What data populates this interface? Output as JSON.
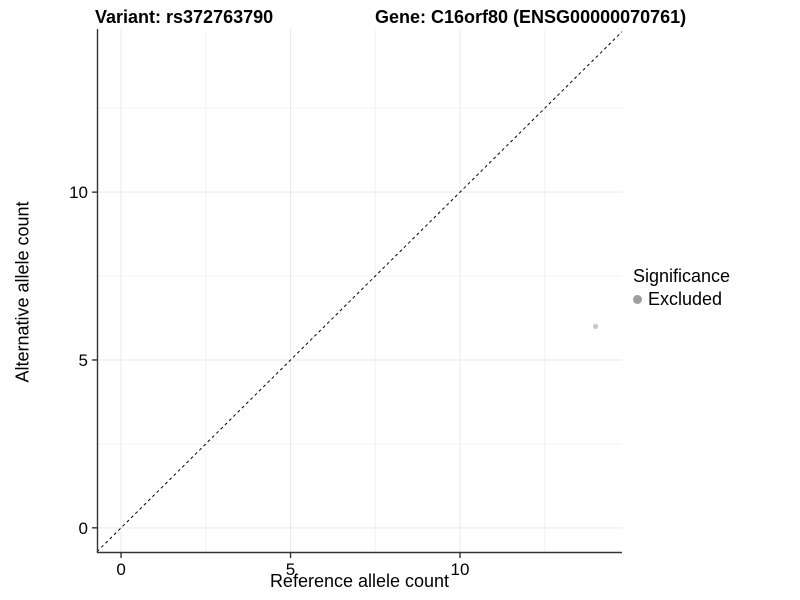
{
  "chart_data": {
    "type": "scatter",
    "title_left": "Variant: rs372763790",
    "title_right": "Gene: C16orf80 (ENSG00000070761)",
    "xlabel": "Reference allele count",
    "ylabel": "Alternative allele count",
    "x_axis": {
      "min": -0.71,
      "max": 14.78,
      "major_ticks": [
        0,
        5,
        10
      ],
      "minor_ticks": [
        2.5,
        7.5,
        12.5
      ]
    },
    "y_axis": {
      "min": -0.75,
      "max": 14.86,
      "major_ticks": [
        0,
        5,
        10
      ],
      "minor_ticks": [
        2.5,
        7.5,
        12.5
      ]
    },
    "points": [
      {
        "x": 14,
        "y": 6,
        "significance": "Excluded"
      }
    ],
    "identity_line": {
      "slope": 1,
      "intercept": 0,
      "style": "dashed"
    },
    "legend": {
      "title": "Significance",
      "items": [
        {
          "label": "Excluded",
          "color": "#9e9e9e"
        }
      ]
    },
    "grid": true,
    "legend_position": "right",
    "colors": {
      "point": "#c8c8c8",
      "legend_point": "#9e9e9e",
      "axis_line": "#333333",
      "tick": "#333333",
      "grid_major": "#e9e9e9",
      "grid_minor": "#f3f3f3",
      "identity_line": "#000000",
      "text": "#000000"
    }
  }
}
